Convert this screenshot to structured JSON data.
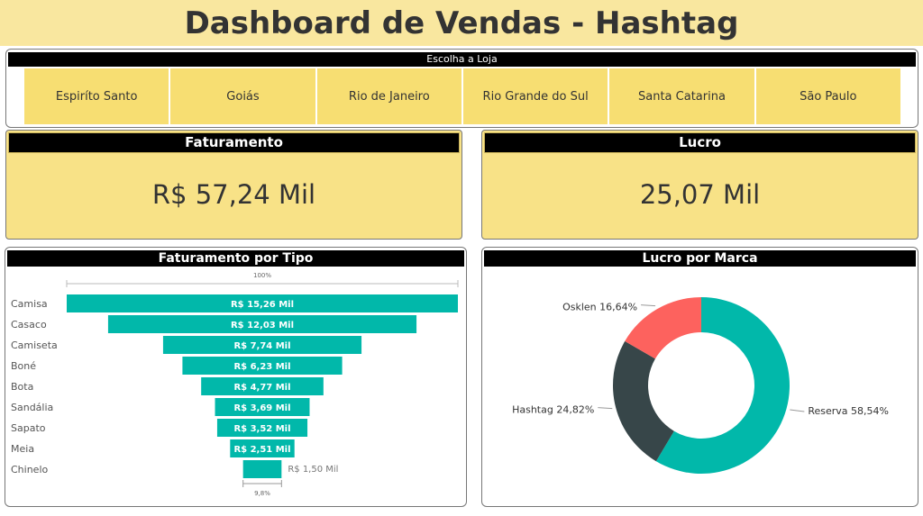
{
  "title": "Dashboard de Vendas - Hashtag",
  "slicer": {
    "header": "Escolha a Loja",
    "options": [
      "Espiríto Santo",
      "Goiás",
      "Rio de Janeiro",
      "Rio Grande do Sul",
      "Santa Catarina",
      "São Paulo"
    ]
  },
  "cards": {
    "faturamento": {
      "label": "Faturamento",
      "value": "R$ 57,24 Mil"
    },
    "lucro": {
      "label": "Lucro",
      "value": "25,07 Mil"
    }
  },
  "colors": {
    "accent_yellow": "#F7DE72",
    "teal": "#01B8AA",
    "dark": "#374649",
    "red": "#FD625E"
  },
  "chart_data": [
    {
      "type": "funnel",
      "title": "Faturamento por Tipo",
      "top_percent_label": "100%",
      "bottom_percent_label": "9,8%",
      "categories": [
        "Camisa",
        "Casaco",
        "Camiseta",
        "Boné",
        "Bota",
        "Sandália",
        "Sapato",
        "Meia",
        "Chinelo"
      ],
      "values": [
        15.26,
        12.03,
        7.74,
        6.23,
        4.77,
        3.69,
        3.52,
        2.51,
        1.5
      ],
      "labels": [
        "R$ 15,26 Mil",
        "R$ 12,03 Mil",
        "R$ 7,74 Mil",
        "R$ 6,23 Mil",
        "R$ 4,77 Mil",
        "R$ 3,69 Mil",
        "R$ 3,52 Mil",
        "R$ 2,51 Mil",
        "R$ 1,50 Mil"
      ],
      "color": "#01B8AA"
    },
    {
      "type": "donut",
      "title": "Lucro por Marca",
      "series": [
        {
          "name": "Reserva",
          "value": 58.54,
          "label": "Reserva 58,54%",
          "color": "#01B8AA"
        },
        {
          "name": "Hashtag",
          "value": 24.82,
          "label": "Hashtag 24,82%",
          "color": "#374649"
        },
        {
          "name": "Osklen",
          "value": 16.64,
          "label": "Osklen 16,64%",
          "color": "#FD625E"
        }
      ]
    }
  ]
}
